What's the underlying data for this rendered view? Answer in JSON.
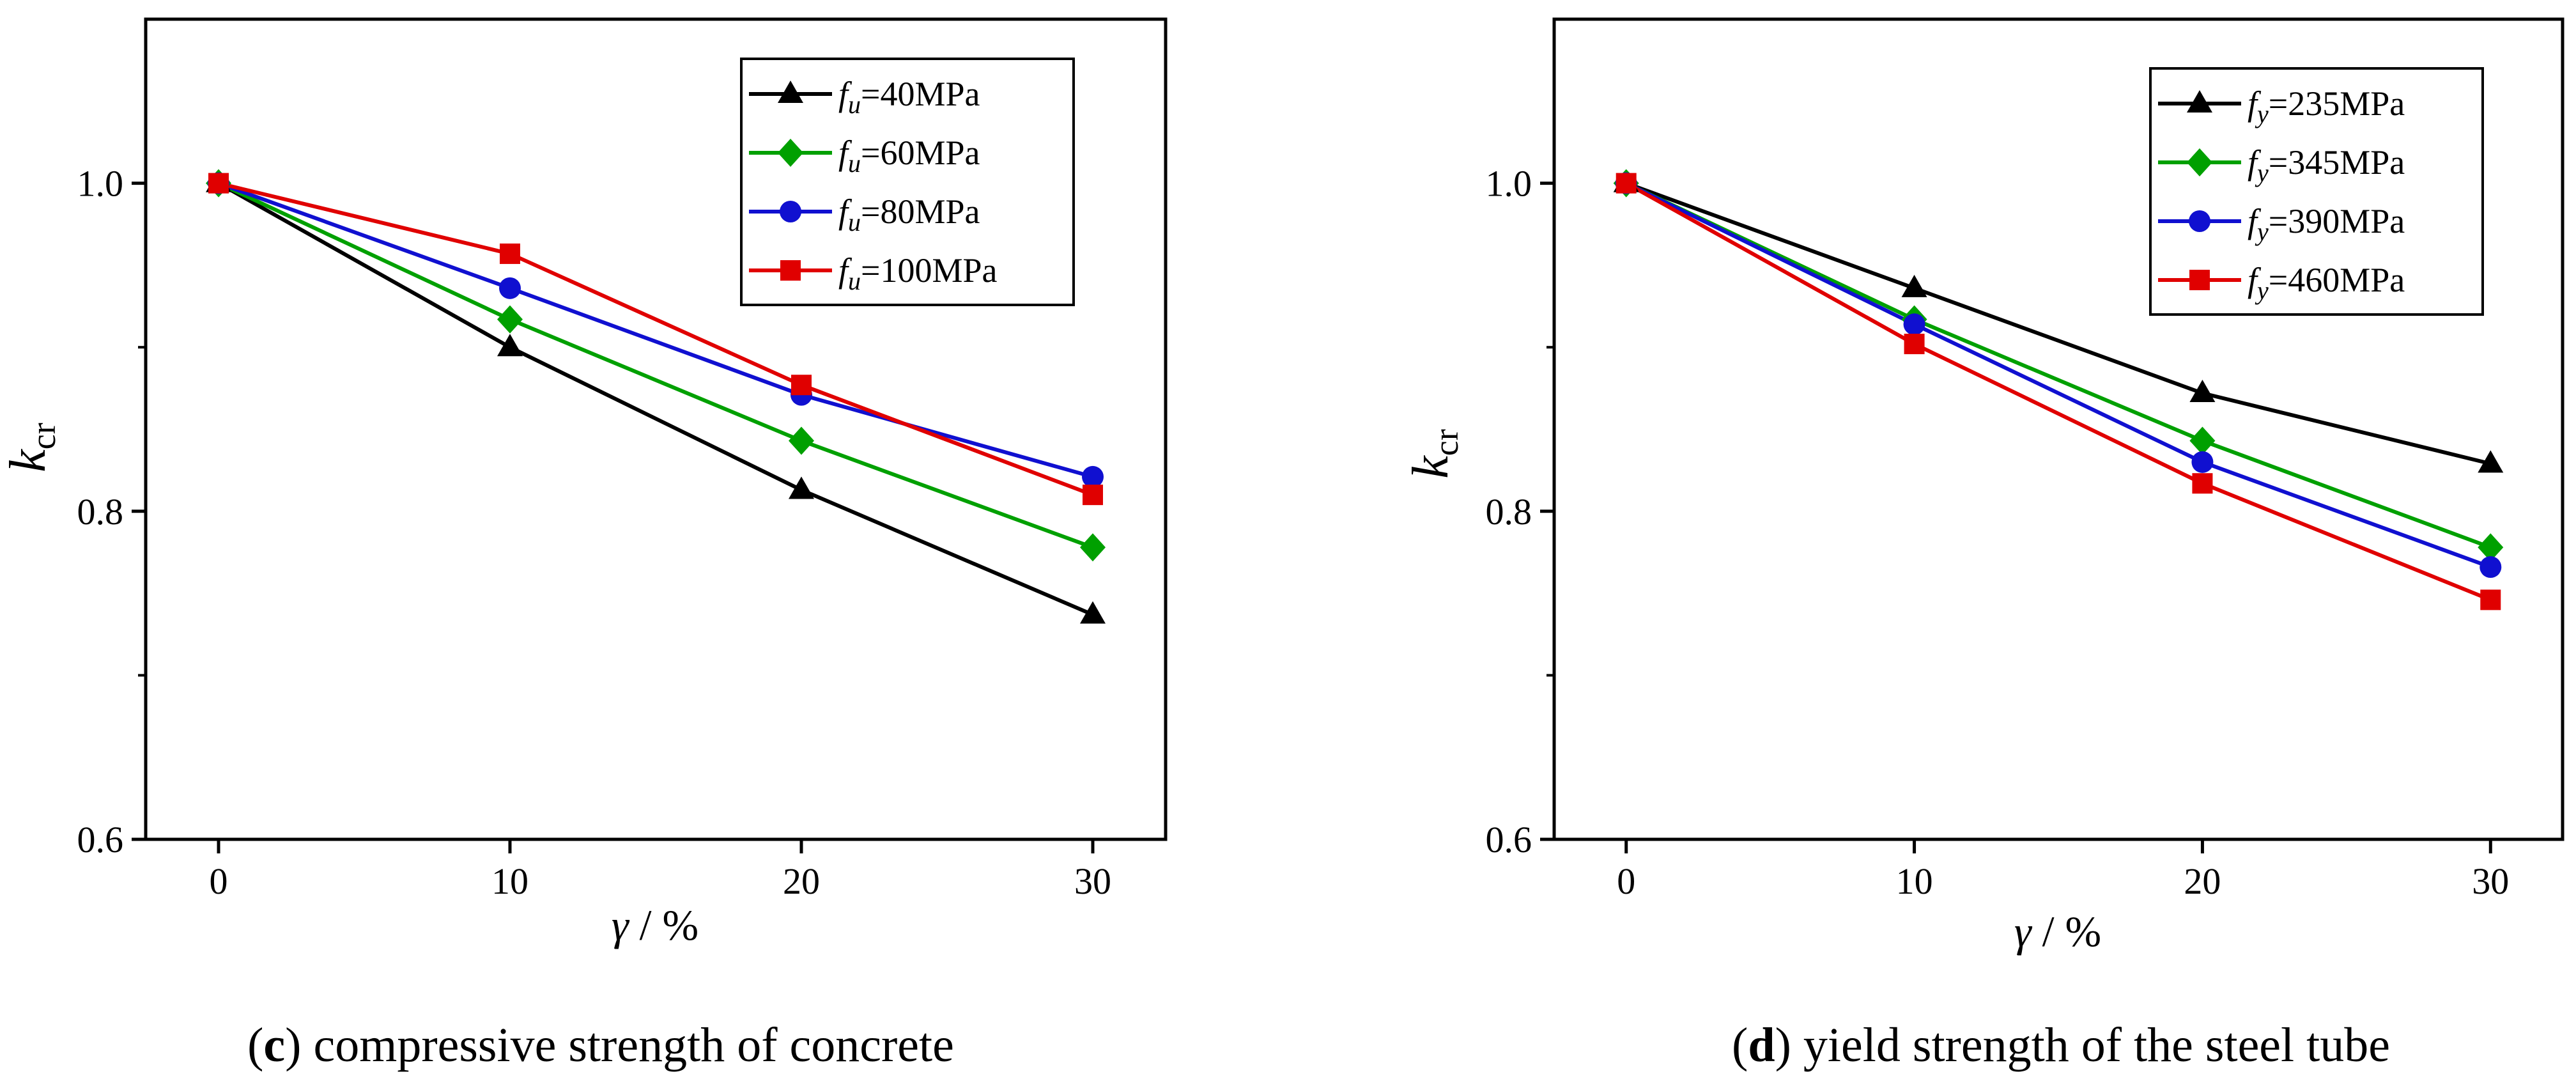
{
  "chart_data": [
    {
      "type": "line",
      "panel": "c",
      "caption_text": "compressive strength of concrete",
      "x": [
        0,
        10,
        20,
        30
      ],
      "xticks": [
        "0",
        "10",
        "20",
        "30"
      ],
      "xlabel_symbol": "γ",
      "xlabel_unit": " / %",
      "ylabel_main": "k",
      "ylabel_sub": "cr",
      "yticks": [
        "0.6",
        "0.8",
        "1.0"
      ],
      "ylim": [
        0.6,
        1.1
      ],
      "xlim": [
        -2.5,
        32.5
      ],
      "legend_position": "top-right",
      "series": [
        {
          "name_var": "f",
          "name_sub": "u",
          "name_rest": "=40MPa",
          "color": "#000000",
          "marker": "triangle",
          "values": [
            1.0,
            0.9,
            0.813,
            0.737
          ]
        },
        {
          "name_var": "f",
          "name_sub": "u",
          "name_rest": "=60MPa",
          "color": "#00a000",
          "marker": "diamond",
          "values": [
            1.0,
            0.917,
            0.843,
            0.778
          ]
        },
        {
          "name_var": "f",
          "name_sub": "u",
          "name_rest": "=80MPa",
          "color": "#1010d0",
          "marker": "circle",
          "values": [
            1.0,
            0.936,
            0.871,
            0.821
          ]
        },
        {
          "name_var": "f",
          "name_sub": "u",
          "name_rest": "=100MPa",
          "color": "#e00000",
          "marker": "square",
          "values": [
            1.0,
            0.957,
            0.877,
            0.81
          ]
        }
      ]
    },
    {
      "type": "line",
      "panel": "d",
      "caption_text": "yield strength of the steel tube",
      "x": [
        0,
        10,
        20,
        30
      ],
      "xticks": [
        "0",
        "10",
        "20",
        "30"
      ],
      "xlabel_symbol": "γ",
      "xlabel_unit": " / %",
      "ylabel_main": "k",
      "ylabel_sub": "cr",
      "yticks": [
        "0.6",
        "0.8",
        "1.0"
      ],
      "ylim": [
        0.6,
        1.1
      ],
      "xlim": [
        -2.5,
        32.5
      ],
      "legend_position": "top-right",
      "series": [
        {
          "name_var": "f",
          "name_sub": "y",
          "name_rest": "=235MPa",
          "color": "#000000",
          "marker": "triangle",
          "values": [
            1.0,
            0.936,
            0.872,
            0.829
          ]
        },
        {
          "name_var": "f",
          "name_sub": "y",
          "name_rest": "=345MPa",
          "color": "#00a000",
          "marker": "diamond",
          "values": [
            1.0,
            0.917,
            0.843,
            0.778
          ]
        },
        {
          "name_var": "f",
          "name_sub": "y",
          "name_rest": "=390MPa",
          "color": "#1010d0",
          "marker": "circle",
          "values": [
            1.0,
            0.914,
            0.83,
            0.766
          ]
        },
        {
          "name_var": "f",
          "name_sub": "y",
          "name_rest": "=460MPa",
          "color": "#e00000",
          "marker": "square",
          "values": [
            1.0,
            0.902,
            0.817,
            0.746
          ]
        }
      ]
    }
  ]
}
